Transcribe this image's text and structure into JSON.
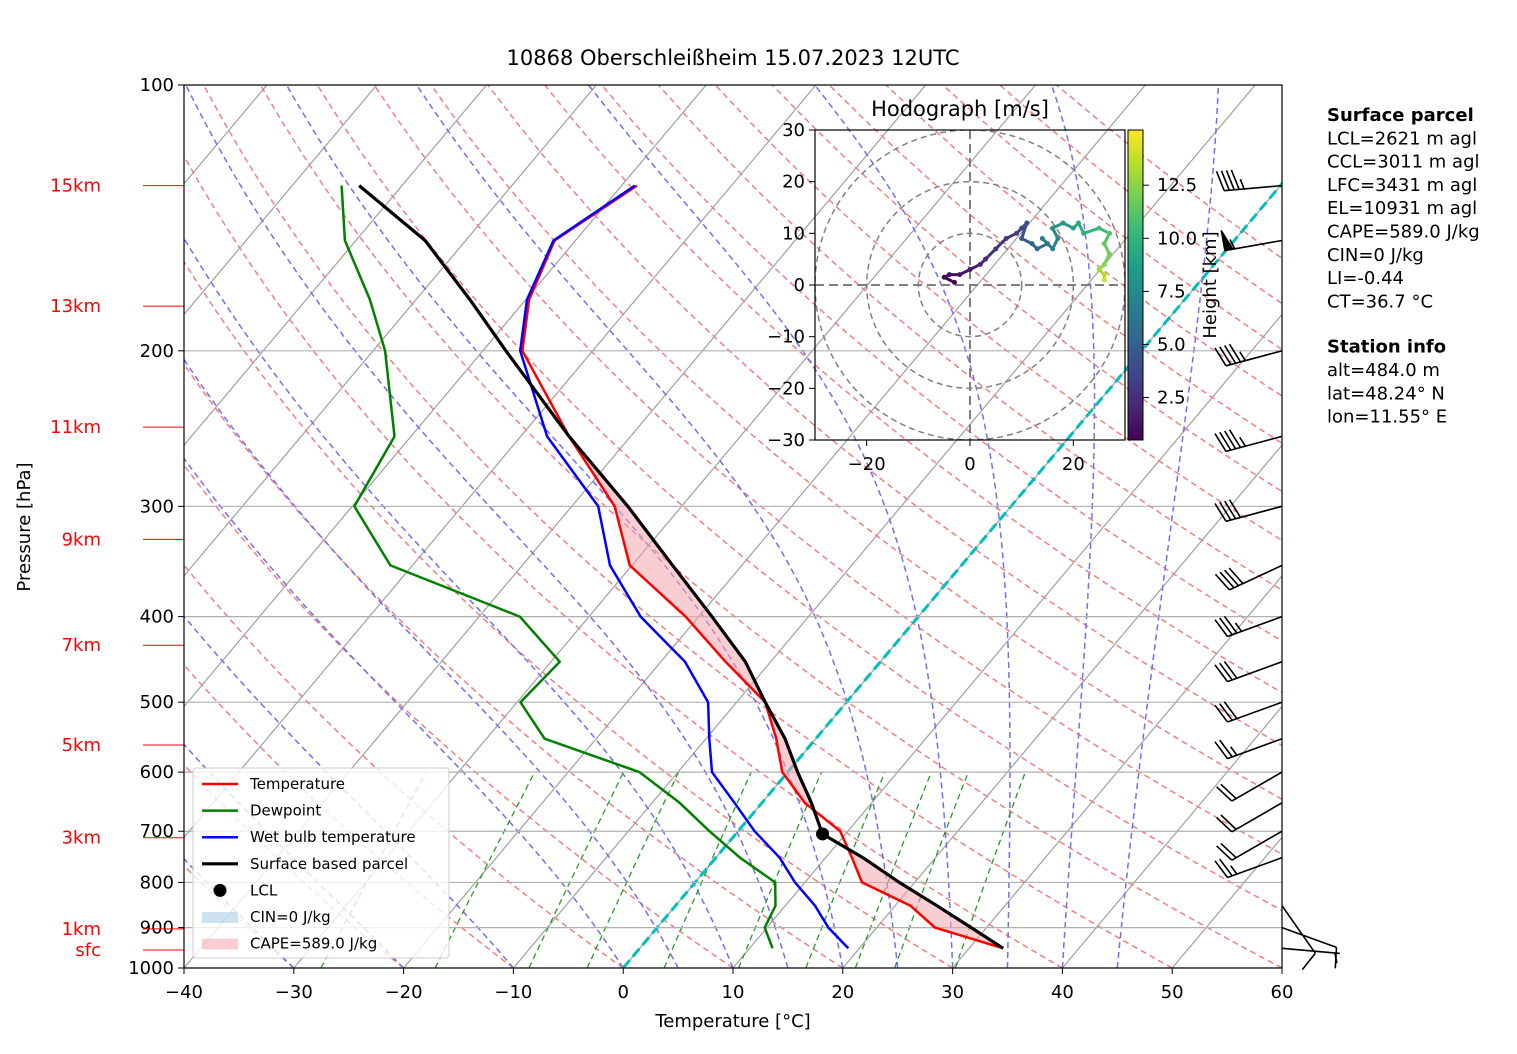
{
  "chart_data": {
    "type": "skewt",
    "title": "10868 Oberschleißheim 15.07.2023 12UTC",
    "x_label": "Temperature [°C]",
    "y_label": "Pressure [hPa]",
    "xlim": [
      -40,
      60
    ],
    "ylim": [
      1000,
      100
    ],
    "ylog": true,
    "grid": true,
    "legend": "lower left",
    "xticks": [
      {
        "value": -40,
        "label": "−40"
      },
      {
        "value": -30,
        "label": "−30"
      },
      {
        "value": -20,
        "label": "−20"
      },
      {
        "value": -10,
        "label": "−10"
      },
      0,
      10,
      20,
      30,
      40,
      50,
      60
    ],
    "yticks": [
      100,
      200,
      300,
      400,
      500,
      600,
      700,
      800,
      900,
      1000
    ],
    "highlight_isotherm": {
      "value": 0,
      "color": "#00bfbf"
    },
    "height_labels": [
      {
        "pressure": 954,
        "label": "sfc"
      },
      {
        "pressure": 903,
        "label": "1km"
      },
      {
        "pressure": 712,
        "label": "3km"
      },
      {
        "pressure": 559,
        "label": "5km"
      },
      {
        "pressure": 431,
        "label": "7km"
      },
      {
        "pressure": 327,
        "label": "9km"
      },
      {
        "pressure": 244,
        "label": "11km"
      },
      {
        "pressure": 178,
        "label": "13km"
      },
      {
        "pressure": 130,
        "label": "15km"
      }
    ],
    "series": [
      {
        "name": "Temperature",
        "color": "#ff0000",
        "pressure": [
          950,
          900,
          850,
          800,
          750,
          700,
          650,
          600,
          550,
          500,
          450,
          400,
          350,
          300,
          250,
          200,
          175,
          150,
          130
        ],
        "temperature": [
          33.1,
          25.3,
          21.4,
          15.2,
          12.4,
          9.3,
          3.9,
          -0.5,
          -3.6,
          -7.4,
          -14.1,
          -21.2,
          -30.2,
          -36.1,
          -45.6,
          -56.4,
          -59.7,
          -61.9,
          -58.6
        ]
      },
      {
        "name": "Dewpoint",
        "color": "#008000",
        "pressure": [
          950,
          900,
          850,
          800,
          750,
          700,
          650,
          600,
          550,
          500,
          450,
          400,
          350,
          300,
          250,
          200,
          175,
          150,
          130
        ],
        "temperature": [
          12.1,
          9.8,
          9.1,
          7.3,
          2.2,
          -2.6,
          -7.5,
          -13.5,
          -24.7,
          -29.7,
          -29.2,
          -36.3,
          -52.0,
          -59.8,
          -61.5,
          -68.9,
          -74.2,
          -81.0,
          -85.5
        ]
      },
      {
        "name": "Wet bulb temperature",
        "color": "#0000ff",
        "pressure": [
          950,
          900,
          850,
          800,
          750,
          700,
          650,
          600,
          550,
          500,
          450,
          400,
          350,
          300,
          250,
          200,
          175,
          150,
          130
        ],
        "temperature": [
          19.0,
          15.6,
          12.7,
          9.1,
          5.8,
          1.5,
          -2.5,
          -6.9,
          -9.7,
          -12.6,
          -17.8,
          -25.3,
          -32.0,
          -37.6,
          -47.6,
          -56.6,
          -59.9,
          -62.0,
          -58.8
        ]
      },
      {
        "name": "Surface based parcel",
        "color": "#000000",
        "pressure": [
          950,
          900,
          850,
          800,
          750,
          705,
          650,
          600,
          550,
          500,
          450,
          400,
          350,
          300,
          250,
          200,
          175,
          150,
          130
        ],
        "temperature": [
          33.1,
          28.6,
          23.8,
          18.6,
          13.4,
          7.9,
          4.5,
          0.9,
          -2.8,
          -7.4,
          -12.3,
          -18.8,
          -26.3,
          -34.9,
          -45.6,
          -57.9,
          -65.1,
          -73.7,
          -83.9
        ]
      }
    ],
    "lcl": {
      "name": "LCL",
      "pressure": 705,
      "temperature": 7.9,
      "color": "#000000"
    },
    "fills": [
      {
        "name": "CIN=0 J/kg",
        "color": "#a6c8e0"
      },
      {
        "name": "CAPE=589.0 J/kg",
        "color": "#f4a6ad"
      }
    ],
    "wind_barbs": {
      "pressure": [
        130,
        150,
        200,
        250,
        300,
        350,
        400,
        450,
        500,
        550,
        600,
        650,
        700,
        750,
        850,
        900,
        950
      ],
      "speed": [
        45,
        55,
        45,
        45,
        40,
        40,
        35,
        30,
        30,
        25,
        20,
        20,
        20,
        25,
        10,
        10,
        5
      ],
      "direction": [
        265,
        260,
        255,
        255,
        255,
        245,
        250,
        250,
        250,
        250,
        240,
        240,
        240,
        250,
        145,
        110,
        95
      ]
    },
    "hodograph": {
      "title": "Hodograph [m/s]",
      "colorbar_label": "Height [km]",
      "xlim": [
        -30,
        30
      ],
      "ylim": [
        -30,
        30
      ],
      "xticks": [
        {
          "value": -20,
          "label": "−20"
        },
        0,
        20
      ],
      "yticks": [
        {
          "value": -30,
          "label": "−30"
        },
        {
          "value": -20,
          "label": "−20"
        },
        {
          "value": -10,
          "label": "−10"
        },
        0,
        10,
        20,
        30
      ],
      "clim": [
        0.5,
        15.1
      ],
      "cticks": [
        2.5,
        {
          "value": 5,
          "label": "5.0"
        },
        7.5,
        {
          "value": 10,
          "label": "10.0"
        },
        12.5
      ],
      "colormap": "viridis",
      "u": [
        -3,
        -5,
        -4,
        -2,
        0,
        2,
        3,
        5,
        7,
        9,
        10,
        11,
        10,
        12,
        13,
        15,
        14,
        16,
        17,
        16,
        18,
        20,
        21,
        22,
        25,
        27,
        26,
        27,
        26,
        25,
        26,
        26
      ],
      "v": [
        0.5,
        1.5,
        2,
        2,
        3,
        4,
        5,
        7,
        9,
        10,
        11,
        12,
        9,
        8,
        7,
        8,
        9,
        7,
        9,
        11,
        12,
        11,
        12,
        10,
        11,
        10,
        8,
        6,
        4,
        3,
        2,
        1
      ],
      "height": [
        0.5,
        0.8,
        1.0,
        1.3,
        1.6,
        2.0,
        2.3,
        2.7,
        3.0,
        3.4,
        3.7,
        4.0,
        4.5,
        5.0,
        5.5,
        6.0,
        6.5,
        7.0,
        7.5,
        8.0,
        8.5,
        9.0,
        9.5,
        10.0,
        10.5,
        11.0,
        11.5,
        12.0,
        12.5,
        13.0,
        13.5,
        14.0
      ]
    },
    "info": [
      {
        "title": "Surface parcel",
        "lines": [
          "LCL=2621 m agl",
          "CCL=3011 m agl",
          "LFC=3431 m agl",
          "EL=10931 m agl",
          "CAPE=589.0 J/kg",
          "CIN=0 J/kg",
          "LI=-0.44",
          "CT=36.7 °C"
        ]
      },
      {
        "title": "Station info",
        "lines": [
          "alt=484.0 m",
          "lat=48.24° N",
          "lon=11.55° E"
        ]
      }
    ]
  }
}
